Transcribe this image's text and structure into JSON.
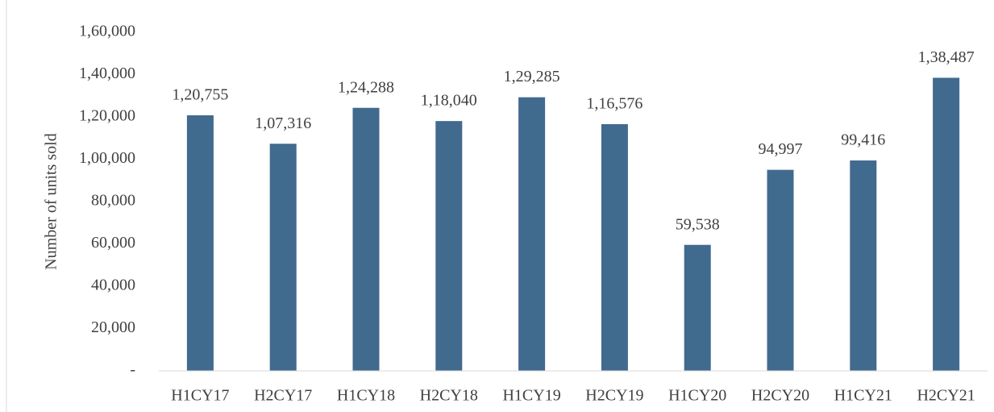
{
  "chart_data": {
    "type": "bar",
    "y_axis_label": "Number of units sold",
    "categories": [
      "H1CY17",
      "H2CY17",
      "H1CY18",
      "H2CY18",
      "H1CY19",
      "H2CY19",
      "H1CY20",
      "H2CY20",
      "H1CY21",
      "H2CY21"
    ],
    "values": [
      120755,
      107316,
      124288,
      118040,
      129285,
      116576,
      59538,
      94997,
      99416,
      138487
    ],
    "value_labels": [
      "1,20,755",
      "1,07,316",
      "1,24,288",
      "1,18,040",
      "1,29,285",
      "1,16,576",
      "59,538",
      "94,997",
      "99,416",
      "1,38,487"
    ],
    "color": "#416a8f",
    "ylim": [
      0,
      160000
    ],
    "yticks": [
      {
        "value": 0,
        "label": "-"
      },
      {
        "value": 20000,
        "label": "20,000"
      },
      {
        "value": 40000,
        "label": "40,000"
      },
      {
        "value": 60000,
        "label": "60,000"
      },
      {
        "value": 80000,
        "label": "80,000"
      },
      {
        "value": 100000,
        "label": "1,00,000"
      },
      {
        "value": 120000,
        "label": "1,20,000"
      },
      {
        "value": 140000,
        "label": "1,40,000"
      },
      {
        "value": 160000,
        "label": "1,60,000"
      }
    ],
    "grid": false
  }
}
